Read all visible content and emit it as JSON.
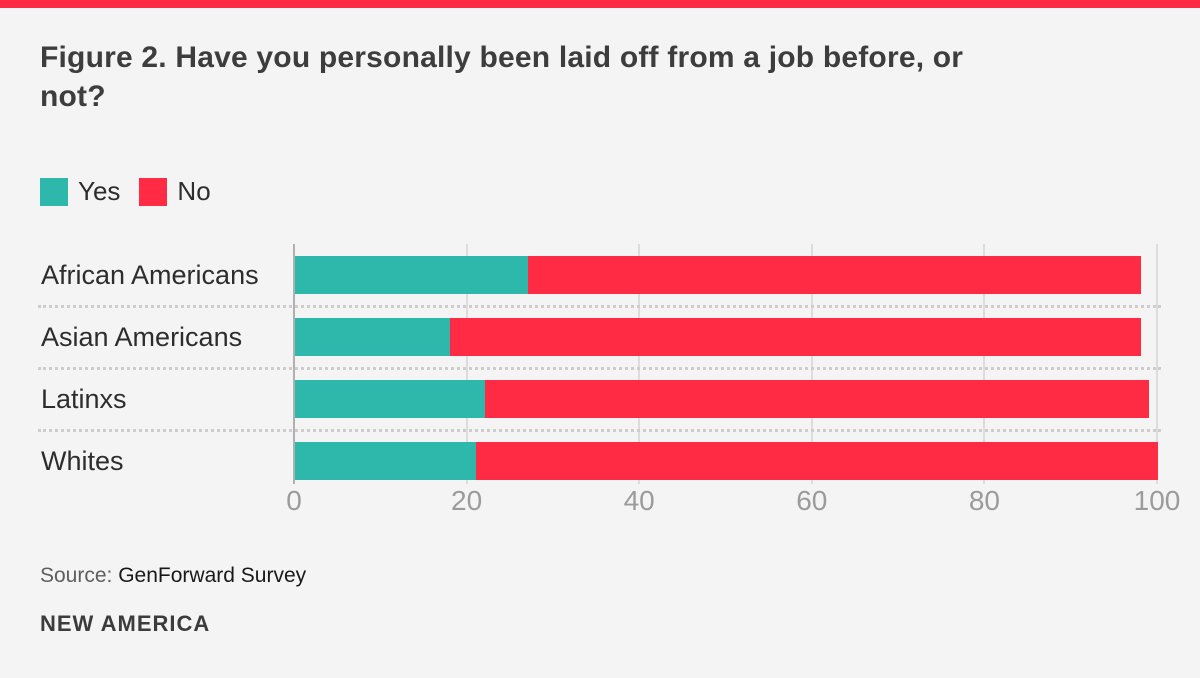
{
  "page": {
    "background": "#f4f4f4",
    "top_bar_color": "#ff2b45"
  },
  "title": "Figure 2. Have you personally been laid off from a job before, or not?",
  "legend": [
    {
      "label": "Yes",
      "color": "#2eb8ac"
    },
    {
      "label": "No",
      "color": "#ff2b45"
    }
  ],
  "chart_data": {
    "type": "bar",
    "orientation": "horizontal",
    "stacked": true,
    "title": "Figure 2. Have you personally been laid off from a job before, or not?",
    "categories": [
      "African Americans",
      "Asian Americans",
      "Latinxs",
      "Whites"
    ],
    "series": [
      {
        "name": "Yes",
        "color": "#2eb8ac",
        "values": [
          27,
          18,
          22,
          21
        ]
      },
      {
        "name": "No",
        "color": "#ff2b45",
        "values": [
          71,
          80,
          77,
          79
        ]
      }
    ],
    "x_ticks": [
      0,
      20,
      40,
      60,
      80,
      100
    ],
    "xlim": [
      0,
      100
    ],
    "xlabel": "",
    "ylabel": "",
    "grid": "vertical",
    "legend_position": "top-left"
  },
  "source": {
    "prefix": "Source:",
    "text": "GenForward Survey"
  },
  "branding": "NEW AMERICA",
  "colors": {
    "yes": "#2eb8ac",
    "no": "#ff2b45",
    "title_text": "#3d3d3d",
    "category_text": "#2d2d2d",
    "tick_text": "#9b9b9b",
    "gridline": "#dcdcdc",
    "axis_line": "#b0b0b0",
    "separator": "#cdcdcd",
    "source_prefix": "#5e5e5e",
    "source_text": "#191919",
    "background": "#f4f4f4"
  }
}
